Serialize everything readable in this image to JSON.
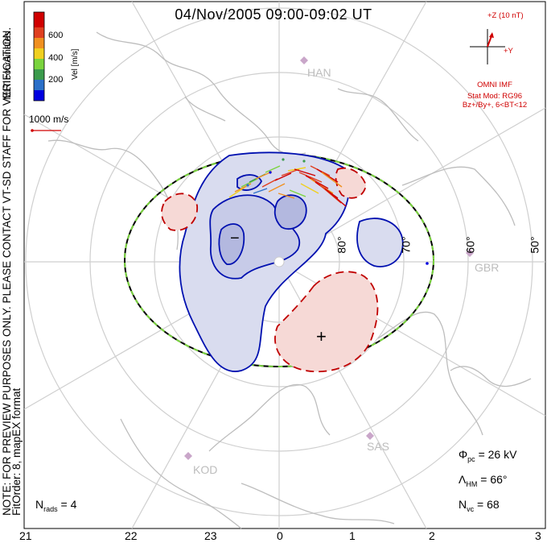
{
  "title": "04/Nov/2005 09:00-09:02 UT",
  "side_note": "NOTE: FOR PREVIEW PURPOSES ONLY. PLEASE CONTACT VT-SD STAFF FOR VERIFICATION.",
  "side_note_2": "FitOrder: 8, mapEX format",
  "colorbar": {
    "title": "MLT coordinates",
    "unit_label": "Vel [m/s]",
    "ticks": [
      "600",
      "400",
      "200"
    ],
    "colors": [
      "#0000e0",
      "#2b70c9",
      "#3c9c4d",
      "#7ad43e",
      "#f0d020",
      "#f09020",
      "#e04020",
      "#d00000"
    ]
  },
  "velocity_reference": {
    "label": "1000 m/s",
    "color": "#d00000"
  },
  "imf": {
    "z_label": "+Z (10 nT)",
    "y_label": "+Y",
    "source": "OMNI IMF",
    "model": "Stat Mod: RG96",
    "condition": "Bz+/By+, 6<BT<12"
  },
  "radars": [
    {
      "code": "HAN",
      "icon": "radar-station-icon"
    },
    {
      "code": "GBR",
      "icon": "radar-station-icon"
    },
    {
      "code": "SAS",
      "icon": "radar-station-icon"
    },
    {
      "code": "KOD",
      "icon": "radar-station-icon"
    }
  ],
  "latitude_labels": [
    "80°",
    "70°",
    "60°",
    "50°"
  ],
  "mlt_labels": [
    "21",
    "22",
    "23",
    "0",
    "1",
    "2",
    "3"
  ],
  "stats": {
    "n_rads_label": "N",
    "n_rads_sub": "rads",
    "n_rads_value": "= 4",
    "phi_label": "Φ",
    "phi_sub": "pc",
    "phi_value": "= 26 kV",
    "lambda_label": "Λ",
    "lambda_sub": "HM",
    "lambda_value": "= 66°",
    "nvc_label": "N",
    "nvc_sub": "vc",
    "nvc_value": "= 68"
  },
  "potential_extrema": {
    "min_marker": "−",
    "max_marker": "+"
  },
  "colors": {
    "negative_contour": "#0010b0",
    "positive_contour": "#c00000",
    "negative_fill": "#d9dcef",
    "positive_fill": "#f6d9d6",
    "heppner_maynard": "#000000",
    "heppner_maynard_dash": "#7ad43e",
    "coastline": "#bdbdbd",
    "grid": "#cfcfcf"
  }
}
